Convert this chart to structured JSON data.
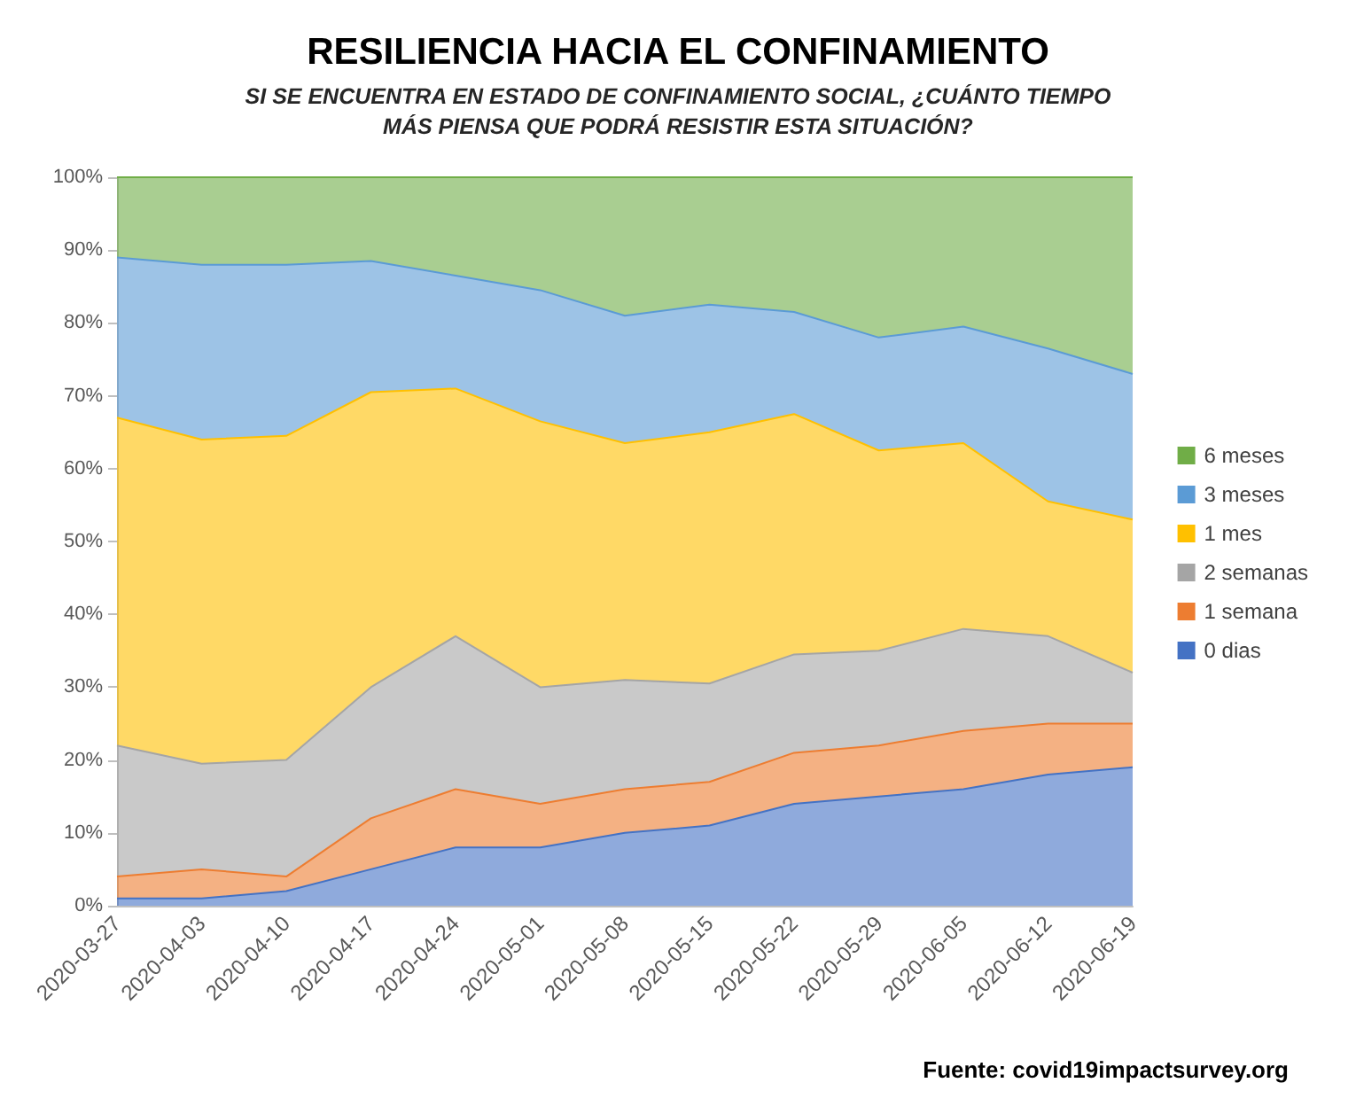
{
  "chart_data": {
    "type": "area",
    "stacked": true,
    "title": "RESILIENCIA HACIA EL CONFINAMIENTO",
    "subtitle": "SI SE ENCUENTRA EN ESTADO DE CONFINAMIENTO SOCIAL, ¿CUÁNTO TIEMPO\nMÁS PIENSA QUE PODRÁ RESISTIR ESTA SITUACIÓN?",
    "categories": [
      "2020-03-27",
      "2020-04-03",
      "2020-04-10",
      "2020-04-17",
      "2020-04-24",
      "2020-05-01",
      "2020-05-08",
      "2020-05-15",
      "2020-05-22",
      "2020-05-29",
      "2020-06-05",
      "2020-06-12",
      "2020-06-19"
    ],
    "series": [
      {
        "name": "0 dias",
        "color": "#4472c4",
        "values": [
          1,
          1,
          2,
          5,
          8,
          8,
          10,
          11,
          14,
          15,
          16,
          18,
          19
        ]
      },
      {
        "name": "1 semana",
        "color": "#ed7d31",
        "values": [
          3,
          4,
          2,
          7,
          8,
          6,
          6,
          6,
          7,
          7,
          8,
          7,
          6
        ]
      },
      {
        "name": "2 semanas",
        "color": "#a5a5a5",
        "values": [
          18,
          14.5,
          16,
          18,
          21,
          16,
          15,
          13.5,
          13.5,
          13,
          14,
          12,
          7
        ]
      },
      {
        "name": "1 mes",
        "color": "#ffc000",
        "values": [
          45,
          44.5,
          44.5,
          40.5,
          34,
          36.5,
          32.5,
          34.5,
          33,
          27.5,
          25.5,
          18.5,
          21
        ]
      },
      {
        "name": "3 meses",
        "color": "#5b9bd5",
        "values": [
          22,
          24,
          23.5,
          18,
          15.5,
          18,
          17.5,
          17.5,
          14,
          15.5,
          16,
          21,
          20
        ]
      },
      {
        "name": "6 meses",
        "color": "#70ad47",
        "values": [
          11,
          12,
          12,
          11.5,
          13.5,
          15.5,
          19,
          17.5,
          18.5,
          22,
          20.5,
          23.5,
          27
        ]
      }
    ],
    "ylim": [
      0,
      100
    ],
    "yticks": [
      {
        "value": 0,
        "label": "0%"
      },
      {
        "value": 10,
        "label": "10%"
      },
      {
        "value": 20,
        "label": "20%"
      },
      {
        "value": 30,
        "label": "30%"
      },
      {
        "value": 40,
        "label": "40%"
      },
      {
        "value": 50,
        "label": "50%"
      },
      {
        "value": 60,
        "label": "60%"
      },
      {
        "value": 70,
        "label": "70%"
      },
      {
        "value": 80,
        "label": "80%"
      },
      {
        "value": 90,
        "label": "90%"
      },
      {
        "value": 100,
        "label": "100%"
      }
    ],
    "grid": false,
    "legend": "right",
    "annotations": [
      "Fuente: covid19impactsurvey.org"
    ]
  }
}
